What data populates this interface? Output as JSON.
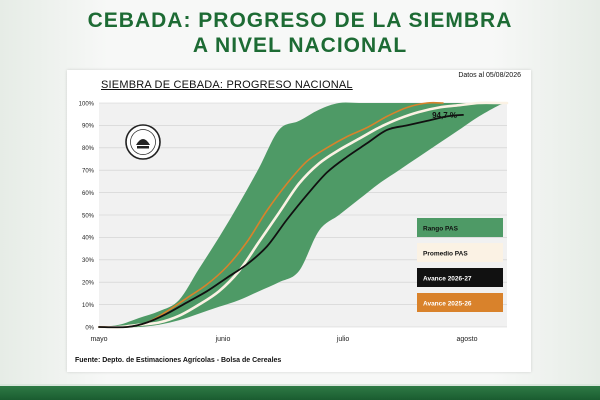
{
  "page": {
    "headline_line1": "CEBADA: PROGRESO DE LA SIEMBRA",
    "headline_line2": "A NIVEL NACIONAL",
    "data_date": "Datos al 05/08/2026",
    "source": "Fuente: Depto. de Estimaciones Agrícolas - Bolsa de Cereales",
    "logo_text": "Bolsa de Cereales"
  },
  "colors": {
    "brand_green": "#1d6b34",
    "band": "#4e9a66",
    "average": "#fbf2e4",
    "current": "#111111",
    "previous": "#d9822b"
  },
  "chart_data": {
    "type": "area",
    "title": "SIEMBRA DE CEBADA: PROGRESO NACIONAL",
    "x_tick_labels": [
      "mayo",
      "junio",
      "julio",
      "agosto"
    ],
    "x_tick_days": [
      0,
      31,
      61,
      92
    ],
    "xlim": [
      0,
      102
    ],
    "ylim": [
      0,
      100
    ],
    "y_tick_labels": [
      "0%",
      "10%",
      "20%",
      "30%",
      "40%",
      "50%",
      "60%",
      "70%",
      "80%",
      "90%",
      "100%"
    ],
    "y_tick_values": [
      0,
      10,
      20,
      30,
      40,
      50,
      60,
      70,
      80,
      90,
      100
    ],
    "grid": true,
    "legend_position": "right",
    "legend": [
      "Rango PAS",
      "Promedio PAS",
      "Avance 2026-27",
      "Avance 2025-26"
    ],
    "annotation": "94,7 %",
    "series": [
      {
        "name": "Rango PAS",
        "kind": "band",
        "x": [
          0,
          5,
          10,
          15,
          20,
          25,
          30,
          35,
          40,
          45,
          50,
          55,
          60,
          65,
          70,
          75,
          80,
          85,
          90,
          95,
          100,
          102
        ],
        "lower": [
          0,
          0,
          0,
          1,
          3,
          6,
          9,
          12,
          16,
          20,
          25,
          43,
          50,
          57,
          64,
          70,
          76,
          82,
          88,
          94,
          99,
          100
        ],
        "upper": [
          0,
          1,
          4,
          7,
          12,
          26,
          40,
          55,
          71,
          88,
          92,
          97,
          100,
          100,
          100,
          100,
          100,
          100,
          100,
          100,
          100,
          100
        ]
      },
      {
        "name": "Promedio PAS",
        "x": [
          0,
          5,
          10,
          15,
          20,
          25,
          30,
          35,
          40,
          45,
          50,
          55,
          60,
          65,
          70,
          75,
          80,
          85,
          90,
          95,
          100,
          102
        ],
        "values": [
          0,
          0,
          1,
          2,
          5,
          10,
          16,
          25,
          38,
          51,
          64,
          73,
          79,
          84,
          89,
          93,
          96,
          98,
          99,
          100,
          100,
          100
        ]
      },
      {
        "name": "Avance 2026-27",
        "x": [
          0,
          7,
          12,
          17,
          22,
          27,
          32,
          37,
          42,
          47,
          52,
          57,
          62,
          67,
          72,
          77,
          82,
          87,
          91
        ],
        "values": [
          0,
          0,
          2,
          6,
          11,
          16,
          22,
          28,
          36,
          48,
          59,
          69,
          76,
          82,
          88,
          90,
          92,
          94,
          94.7
        ]
      },
      {
        "name": "Avance 2025-26",
        "x": [
          0,
          7,
          12,
          17,
          22,
          27,
          32,
          37,
          42,
          47,
          52,
          57,
          62,
          67,
          72,
          77,
          82,
          86
        ],
        "values": [
          0,
          0,
          2,
          7,
          13,
          19,
          27,
          38,
          52,
          64,
          74,
          80,
          85,
          89,
          94,
          98,
          100,
          100
        ]
      }
    ]
  }
}
